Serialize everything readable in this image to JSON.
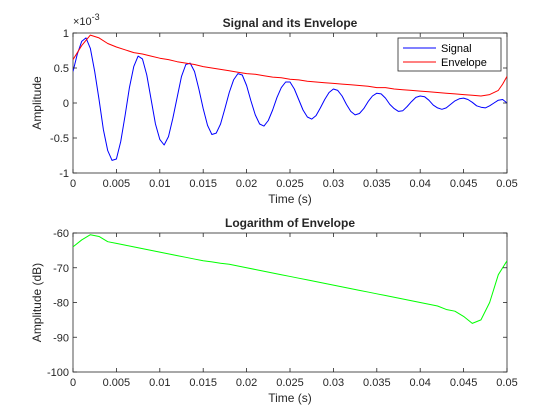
{
  "chart_data": [
    {
      "type": "line",
      "title": "Signal and its Envelope",
      "xlabel": "Time (s)",
      "ylabel": "Amplitude",
      "exponent_label": "×10",
      "exponent_value": "-3",
      "xlim": [
        0,
        0.05
      ],
      "ylim": [
        -1,
        1
      ],
      "xticks": [
        0,
        0.005,
        0.01,
        0.015,
        0.02,
        0.025,
        0.03,
        0.035,
        0.04,
        0.045,
        0.05
      ],
      "xtick_labels": [
        "0",
        "0.005",
        "0.01",
        "0.015",
        "0.02",
        "0.025",
        "0.03",
        "0.035",
        "0.04",
        "0.045",
        "0.05"
      ],
      "yticks": [
        -1,
        -0.5,
        0,
        0.5,
        1
      ],
      "ytick_labels": [
        "-1",
        "-0.5",
        "0",
        "0.5",
        "1"
      ],
      "grid": false,
      "legend": "top-right",
      "series": [
        {
          "name": "Signal",
          "color": "#0000ff",
          "x": [
            0,
            0.0005,
            0.001,
            0.0015,
            0.002,
            0.0025,
            0.003,
            0.0035,
            0.004,
            0.0045,
            0.005,
            0.0055,
            0.006,
            0.0065,
            0.007,
            0.0075,
            0.008,
            0.0085,
            0.009,
            0.0095,
            0.01,
            0.0105,
            0.011,
            0.0115,
            0.012,
            0.0125,
            0.013,
            0.0135,
            0.014,
            0.0145,
            0.015,
            0.0155,
            0.016,
            0.0165,
            0.017,
            0.0175,
            0.018,
            0.0185,
            0.019,
            0.0195,
            0.02,
            0.0205,
            0.021,
            0.0215,
            0.022,
            0.0225,
            0.023,
            0.0235,
            0.024,
            0.0245,
            0.025,
            0.0255,
            0.026,
            0.0265,
            0.027,
            0.0275,
            0.028,
            0.0285,
            0.029,
            0.0295,
            0.03,
            0.0305,
            0.031,
            0.0315,
            0.032,
            0.0325,
            0.033,
            0.0335,
            0.034,
            0.0345,
            0.035,
            0.0355,
            0.036,
            0.0365,
            0.037,
            0.0375,
            0.038,
            0.0385,
            0.039,
            0.0395,
            0.04,
            0.0405,
            0.041,
            0.0415,
            0.042,
            0.0425,
            0.043,
            0.0435,
            0.044,
            0.0445,
            0.045,
            0.0455,
            0.046,
            0.0465,
            0.047,
            0.0475,
            0.048,
            0.0485,
            0.049,
            0.0495,
            0.05
          ],
          "y": [
            0.45,
            0.7,
            0.88,
            0.93,
            0.78,
            0.45,
            0.05,
            -0.38,
            -0.68,
            -0.82,
            -0.8,
            -0.55,
            -0.18,
            0.22,
            0.52,
            0.67,
            0.63,
            0.4,
            0.05,
            -0.3,
            -0.52,
            -0.6,
            -0.48,
            -0.22,
            0.08,
            0.38,
            0.55,
            0.57,
            0.45,
            0.2,
            -0.08,
            -0.32,
            -0.45,
            -0.43,
            -0.3,
            -0.08,
            0.15,
            0.33,
            0.42,
            0.4,
            0.25,
            0.03,
            -0.17,
            -0.3,
            -0.33,
            -0.25,
            -0.1,
            0.08,
            0.22,
            0.3,
            0.3,
            0.2,
            0.05,
            -0.1,
            -0.2,
            -0.23,
            -0.18,
            -0.07,
            0.05,
            0.15,
            0.2,
            0.18,
            0.1,
            -0.02,
            -0.12,
            -0.17,
            -0.15,
            -0.08,
            0.02,
            0.1,
            0.14,
            0.13,
            0.07,
            -0.02,
            -0.08,
            -0.12,
            -0.11,
            -0.05,
            0.02,
            0.08,
            0.1,
            0.09,
            0.04,
            -0.03,
            -0.07,
            -0.09,
            -0.07,
            -0.02,
            0.03,
            0.06,
            0.07,
            0.05,
            0.01,
            -0.04,
            -0.06,
            -0.07,
            -0.04,
            0.0,
            0.04,
            0.05,
            0.0
          ]
        },
        {
          "name": "Envelope",
          "color": "#ff0000",
          "x": [
            0,
            0.001,
            0.002,
            0.003,
            0.004,
            0.005,
            0.006,
            0.007,
            0.008,
            0.009,
            0.01,
            0.011,
            0.012,
            0.013,
            0.014,
            0.015,
            0.016,
            0.017,
            0.018,
            0.019,
            0.02,
            0.021,
            0.022,
            0.023,
            0.024,
            0.025,
            0.026,
            0.027,
            0.028,
            0.029,
            0.03,
            0.031,
            0.032,
            0.033,
            0.034,
            0.035,
            0.036,
            0.037,
            0.038,
            0.039,
            0.04,
            0.041,
            0.042,
            0.043,
            0.044,
            0.045,
            0.046,
            0.047,
            0.048,
            0.049,
            0.0495,
            0.05
          ],
          "y": [
            0.62,
            0.82,
            0.97,
            0.93,
            0.85,
            0.8,
            0.76,
            0.72,
            0.7,
            0.67,
            0.64,
            0.62,
            0.59,
            0.57,
            0.55,
            0.52,
            0.5,
            0.48,
            0.46,
            0.44,
            0.42,
            0.41,
            0.39,
            0.37,
            0.36,
            0.34,
            0.33,
            0.31,
            0.3,
            0.29,
            0.28,
            0.27,
            0.26,
            0.25,
            0.24,
            0.22,
            0.22,
            0.2,
            0.19,
            0.18,
            0.17,
            0.16,
            0.15,
            0.14,
            0.13,
            0.12,
            0.11,
            0.1,
            0.12,
            0.18,
            0.27,
            0.38
          ]
        }
      ]
    },
    {
      "type": "line",
      "title": "Logarithm of Envelope",
      "xlabel": "Time (s)",
      "ylabel": "Amplitude (dB)",
      "xlim": [
        0,
        0.05
      ],
      "ylim": [
        -100,
        -60
      ],
      "xticks": [
        0,
        0.005,
        0.01,
        0.015,
        0.02,
        0.025,
        0.03,
        0.035,
        0.04,
        0.045,
        0.05
      ],
      "xtick_labels": [
        "0",
        "0.005",
        "0.01",
        "0.015",
        "0.02",
        "0.025",
        "0.03",
        "0.035",
        "0.04",
        "0.045",
        "0.05"
      ],
      "yticks": [
        -100,
        -90,
        -80,
        -70,
        -60
      ],
      "ytick_labels": [
        "-100",
        "-90",
        "-80",
        "-70",
        "-60"
      ],
      "grid": false,
      "series": [
        {
          "color": "#00ff00",
          "x": [
            0,
            0.001,
            0.002,
            0.003,
            0.004,
            0.005,
            0.006,
            0.007,
            0.008,
            0.009,
            0.01,
            0.011,
            0.012,
            0.013,
            0.014,
            0.015,
            0.016,
            0.017,
            0.018,
            0.019,
            0.02,
            0.021,
            0.022,
            0.023,
            0.024,
            0.025,
            0.026,
            0.027,
            0.028,
            0.029,
            0.03,
            0.031,
            0.032,
            0.033,
            0.034,
            0.035,
            0.036,
            0.037,
            0.038,
            0.039,
            0.04,
            0.041,
            0.042,
            0.043,
            0.044,
            0.045,
            0.046,
            0.047,
            0.048,
            0.049,
            0.0495,
            0.05
          ],
          "y": [
            -64,
            -62,
            -60.5,
            -61,
            -62.5,
            -63,
            -63.5,
            -64,
            -64.5,
            -65,
            -65.5,
            -66,
            -66.5,
            -67,
            -67.5,
            -68,
            -68.3,
            -68.7,
            -69,
            -69.5,
            -70,
            -70.5,
            -71,
            -71.5,
            -72,
            -72.5,
            -73,
            -73.5,
            -74,
            -74.5,
            -75,
            -75.5,
            -76,
            -76.5,
            -77,
            -77.5,
            -78,
            -78.5,
            -79,
            -79.5,
            -80,
            -80.5,
            -81,
            -82,
            -82.5,
            -84,
            -86,
            -85,
            -80,
            -72,
            -70,
            -68
          ]
        }
      ]
    }
  ]
}
